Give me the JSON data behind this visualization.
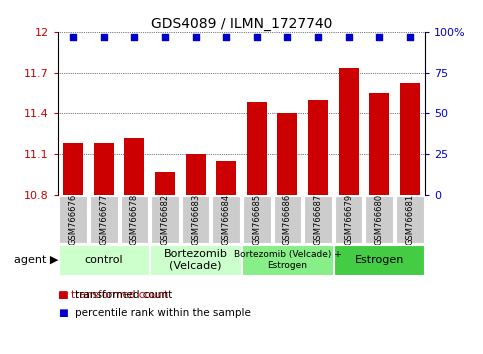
{
  "title": "GDS4089 / ILMN_1727740",
  "samples": [
    "GSM766676",
    "GSM766677",
    "GSM766678",
    "GSM766682",
    "GSM766683",
    "GSM766684",
    "GSM766685",
    "GSM766686",
    "GSM766687",
    "GSM766679",
    "GSM766680",
    "GSM766681"
  ],
  "bar_values": [
    11.18,
    11.18,
    11.22,
    10.97,
    11.1,
    11.05,
    11.48,
    11.4,
    11.5,
    11.73,
    11.55,
    11.62
  ],
  "bar_color": "#cc0000",
  "dot_color": "#0000cc",
  "ylim_left": [
    10.8,
    12.0
  ],
  "ylim_right": [
    0,
    100
  ],
  "yticks_left": [
    10.8,
    11.1,
    11.4,
    11.7,
    12.0
  ],
  "yticks_right": [
    0,
    25,
    50,
    75,
    100
  ],
  "ytick_labels_left": [
    "10.8",
    "11.1",
    "11.4",
    "11.7",
    "12"
  ],
  "ytick_labels_right": [
    "0",
    "25",
    "50",
    "75",
    "100%"
  ],
  "group_defs": [
    {
      "start": 0,
      "end": 3,
      "color": "#ccffcc",
      "label": "control"
    },
    {
      "start": 3,
      "end": 6,
      "color": "#ccffcc",
      "label": "Bortezomib\n(Velcade)"
    },
    {
      "start": 6,
      "end": 9,
      "color": "#88ee88",
      "label": "Bortezomib (Velcade) +\nEstrogen"
    },
    {
      "start": 9,
      "end": 12,
      "color": "#44cc44",
      "label": "Estrogen"
    }
  ],
  "agent_label": "agent ▶",
  "legend_bar_label": "transformed count",
  "legend_dot_label": "percentile rank within the sample",
  "sample_bg_color": "#cccccc",
  "bar_width": 0.65,
  "dot_marker_size": 18,
  "title_fontsize": 10,
  "tick_fontsize": 8,
  "sample_fontsize": 6,
  "group_fontsize": 8,
  "legend_fontsize": 7.5
}
